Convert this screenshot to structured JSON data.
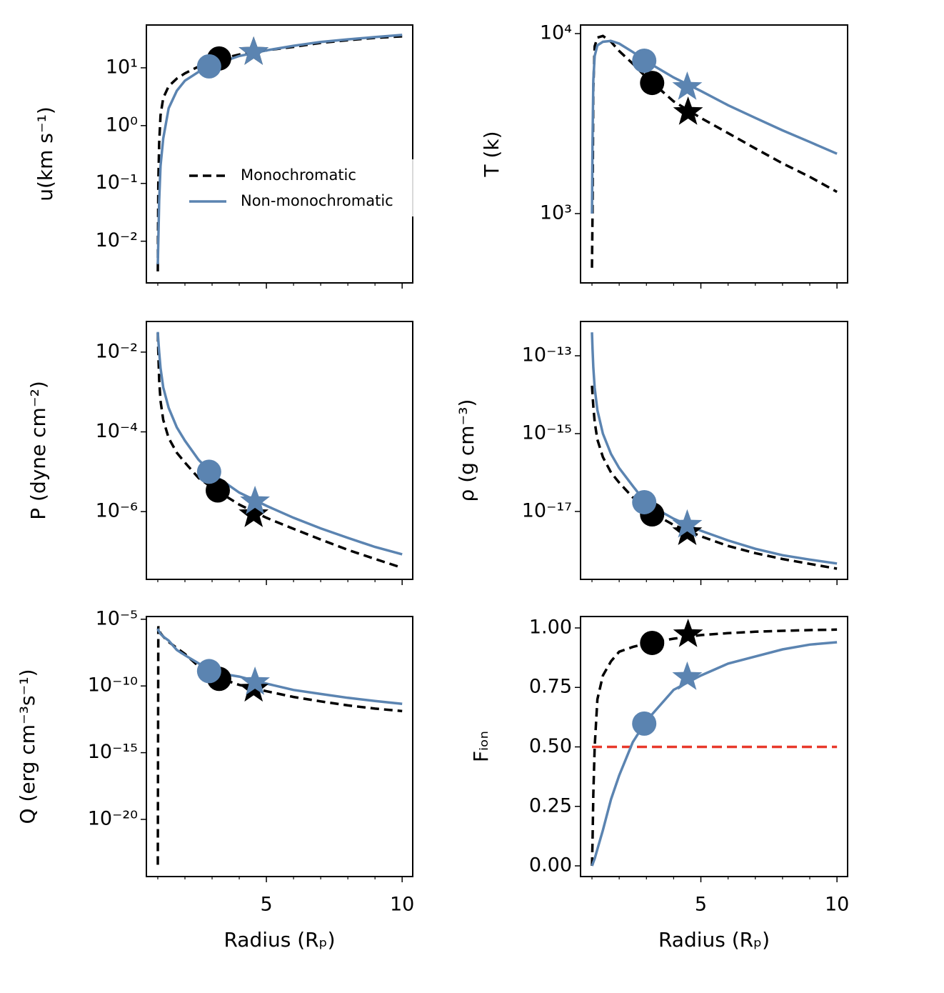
{
  "chart_data": [
    {
      "type": "line",
      "ylabel": "u(km s⁻¹)",
      "log_y": true,
      "legend": "center",
      "xlim": [
        0.58,
        10.39
      ],
      "xticks": [
        5,
        10
      ],
      "xminor": [
        1,
        2,
        3,
        4,
        6,
        7,
        8,
        9
      ],
      "xtick_labels": false,
      "ylim": [
        0.0019,
        55
      ],
      "yticks": [
        {
          "value": 0.01,
          "label": "10⁻²"
        },
        {
          "value": 0.1,
          "label": "10⁻¹"
        },
        {
          "value": 1,
          "label": "10⁰"
        },
        {
          "value": 10,
          "label": "10¹"
        }
      ],
      "x": [
        1,
        1.02,
        1.05,
        1.1,
        1.2,
        1.4,
        1.7,
        2,
        2.5,
        3,
        4,
        5,
        6,
        7,
        8,
        9,
        10
      ],
      "series": [
        {
          "name": "Monochromatic",
          "color": "#000000",
          "linestyle": "dashed",
          "values": [
            0.003,
            0.1,
            0.5,
            1.5,
            3,
            4.8,
            6.5,
            8,
            10.5,
            13,
            17,
            20,
            23,
            27,
            30,
            33,
            35
          ],
          "points": [
            {
              "marker": "circle",
              "x": 3.26,
              "y": 14.5
            },
            {
              "marker": "star",
              "x": 4.53,
              "y": 18.7
            }
          ]
        },
        {
          "name": "Non-monochromatic",
          "color": "#5b84b1",
          "linestyle": "solid",
          "values": [
            0.004,
            0.01,
            0.05,
            0.2,
            0.6,
            2,
            4,
            6,
            8.5,
            11,
            16,
            20,
            24,
            28,
            31,
            34,
            37
          ],
          "points": [
            {
              "marker": "circle",
              "x": 2.89,
              "y": 10.6
            },
            {
              "marker": "star",
              "x": 4.53,
              "y": 18.7
            }
          ]
        }
      ]
    },
    {
      "type": "line",
      "ylabel": "T (k)",
      "log_y": true,
      "xlim": [
        0.58,
        10.39
      ],
      "xticks": [
        5,
        10
      ],
      "xminor": [
        1,
        2,
        3,
        4,
        6,
        7,
        8,
        9
      ],
      "xtick_labels": false,
      "ylim": [
        412,
        11160
      ],
      "yticks": [
        {
          "value": 1000,
          "label": "10³"
        },
        {
          "value": 10000,
          "label": "10⁴"
        }
      ],
      "x": [
        1,
        1.02,
        1.05,
        1.1,
        1.2,
        1.4,
        1.7,
        2,
        2.5,
        3,
        4,
        5,
        6,
        7,
        8,
        9,
        10
      ],
      "series": [
        {
          "name": "Monochromatic",
          "color": "#000000",
          "linestyle": "dashed",
          "values": [
            500,
            1000,
            5000,
            8500,
            9500,
            9700,
            9000,
            8000,
            6800,
            5700,
            4200,
            3400,
            2800,
            2300,
            1900,
            1600,
            1320
          ],
          "points": [
            {
              "marker": "circle",
              "x": 3.21,
              "y": 5320
            },
            {
              "marker": "star",
              "x": 4.53,
              "y": 3660
            }
          ]
        },
        {
          "name": "Non-monochromatic",
          "color": "#5b84b1",
          "linestyle": "solid",
          "values": [
            1000,
            2500,
            5500,
            7500,
            8600,
            9000,
            9100,
            8800,
            7900,
            7000,
            5700,
            4800,
            4000,
            3400,
            2900,
            2500,
            2150
          ],
          "points": [
            {
              "marker": "circle",
              "x": 2.92,
              "y": 7070
            },
            {
              "marker": "star",
              "x": 4.5,
              "y": 5040
            }
          ]
        }
      ]
    },
    {
      "type": "line",
      "ylabel": "P (dyne cm⁻²)",
      "log_y": true,
      "xlim": [
        0.58,
        10.39
      ],
      "xticks": [
        5,
        10
      ],
      "xminor": [
        1,
        2,
        3,
        4,
        6,
        7,
        8,
        9
      ],
      "xtick_labels": false,
      "ylim": [
        2e-08,
        0.0586
      ],
      "yticks": [
        {
          "value": 1e-06,
          "label": "10⁻⁶"
        },
        {
          "value": 0.0001,
          "label": "10⁻⁴"
        },
        {
          "value": 0.01,
          "label": "10⁻²"
        }
      ],
      "x": [
        1,
        1.02,
        1.05,
        1.1,
        1.2,
        1.4,
        1.7,
        2,
        2.5,
        3,
        4,
        5,
        6,
        7,
        8,
        9,
        10
      ],
      "series": [
        {
          "name": "Monochromatic",
          "color": "#000000",
          "linestyle": "dashed",
          "values": [
            0.03,
            0.01,
            0.002,
            0.0006,
            0.0002,
            7e-05,
            3e-05,
            1.7e-05,
            7e-06,
            4e-06,
            1.5e-06,
            7e-07,
            3.7e-07,
            2e-07,
            1.1e-07,
            6.5e-08,
            3.9e-08
          ],
          "points": [
            {
              "marker": "circle",
              "x": 3.21,
              "y": 3.4e-06
            },
            {
              "marker": "star",
              "x": 4.53,
              "y": 8.5e-07
            }
          ]
        },
        {
          "name": "Non-monochromatic",
          "color": "#5b84b1",
          "linestyle": "solid",
          "values": [
            0.032,
            0.02,
            0.01,
            0.004,
            0.0013,
            0.0004,
            0.00013,
            6e-05,
            2e-05,
            9e-06,
            3e-06,
            1.4e-06,
            7e-07,
            3.8e-07,
            2.2e-07,
            1.3e-07,
            8.5e-08
          ],
          "points": [
            {
              "marker": "circle",
              "x": 2.89,
              "y": 1e-05
            },
            {
              "marker": "star",
              "x": 4.58,
              "y": 1.8e-06
            }
          ]
        }
      ]
    },
    {
      "type": "line",
      "ylabel": "ρ (g cm⁻³)",
      "log_y": true,
      "xlim": [
        0.58,
        10.39
      ],
      "xticks": [
        5,
        10
      ],
      "xminor": [
        1,
        2,
        3,
        4,
        6,
        7,
        8,
        9
      ],
      "xtick_labels": false,
      "ylim": [
        1.8e-19,
        7.6e-13
      ],
      "yticks": [
        {
          "value": 1e-17,
          "label": "10⁻¹⁷"
        },
        {
          "value": 1e-15,
          "label": "10⁻¹⁵"
        },
        {
          "value": 1e-13,
          "label": "10⁻¹³"
        }
      ],
      "x": [
        1,
        1.02,
        1.05,
        1.1,
        1.2,
        1.4,
        1.7,
        2,
        2.5,
        3,
        4,
        5,
        6,
        7,
        8,
        9,
        10
      ],
      "series": [
        {
          "name": "Monochromatic",
          "color": "#000000",
          "linestyle": "dashed",
          "values": [
            1.7e-14,
            1e-14,
            5e-15,
            2e-15,
            7e-16,
            2.5e-16,
            1e-16,
            5.5e-17,
            2.3e-17,
            1.1e-17,
            4.5e-18,
            2.3e-18,
            1.3e-18,
            8.5e-19,
            6e-19,
            4.5e-19,
            3.4e-19
          ],
          "points": [
            {
              "marker": "circle",
              "x": 3.21,
              "y": 8.4e-18
            },
            {
              "marker": "star",
              "x": 4.5,
              "y": 2.9e-18
            }
          ]
        },
        {
          "name": "Non-monochromatic",
          "color": "#5b84b1",
          "linestyle": "solid",
          "values": [
            4e-13,
            1.5e-13,
            5e-14,
            1.5e-14,
            4e-15,
            1e-15,
            3e-16,
            1.3e-16,
            4.5e-17,
            1.6e-17,
            6.5e-18,
            3.2e-18,
            1.8e-18,
            1.1e-18,
            7.5e-19,
            5.8e-19,
            4.6e-19
          ],
          "points": [
            {
              "marker": "circle",
              "x": 2.92,
              "y": 1.73e-17
            },
            {
              "marker": "star",
              "x": 4.5,
              "y": 4.5e-18
            }
          ]
        }
      ]
    },
    {
      "type": "line",
      "ylabel": "Q (erg cm⁻³s⁻¹)",
      "xlabel": "Radius (Rₚ)",
      "log_y": true,
      "xlim": [
        0.58,
        10.39
      ],
      "xticks": [
        5,
        10
      ],
      "xminor": [
        1,
        2,
        3,
        4,
        6,
        7,
        8,
        9
      ],
      "xtick_labels": true,
      "ylim": [
        5.2e-25,
        1.6e-05
      ],
      "yticks": [
        {
          "value": 1e-20,
          "label": "10⁻²⁰"
        },
        {
          "value": 1e-15,
          "label": "10⁻¹⁵"
        },
        {
          "value": 1e-10,
          "label": "10⁻¹⁰"
        },
        {
          "value": 1e-05,
          "label": "10⁻⁵"
        }
      ],
      "x": [
        1,
        1.02,
        1.05,
        1.1,
        1.2,
        1.4,
        1.7,
        2,
        2.5,
        3,
        4,
        5,
        6,
        7,
        8,
        9,
        10
      ],
      "series": [
        {
          "name": "Monochromatic",
          "color": "#000000",
          "linestyle": "dashed",
          "values": [
            4e-24,
            3e-06,
            1.5e-06,
            9e-07,
            5e-07,
            2e-07,
            7e-08,
            2.5e-08,
            3e-09,
            6e-10,
            1.2e-10,
            4e-11,
            1.5e-11,
            7e-12,
            3.5e-12,
            2e-12,
            1.3e-12
          ],
          "points": [
            {
              "marker": "circle",
              "x": 3.26,
              "y": 3.4e-10
            },
            {
              "marker": "star",
              "x": 4.53,
              "y": 6e-11
            }
          ]
        },
        {
          "name": "Non-monochromatic",
          "color": "#5b84b1",
          "linestyle": "solid",
          "values": [
            2e-06,
            1.5e-06,
            1.2e-06,
            8e-07,
            5e-07,
            2.5e-07,
            5e-08,
            2e-08,
            5e-09,
            1.1e-09,
            5e-10,
            1.5e-10,
            5e-11,
            2.5e-11,
            1.3e-11,
            7.5e-12,
            4.6e-12
          ],
          "points": [
            {
              "marker": "circle",
              "x": 2.89,
              "y": 1.3e-09
            },
            {
              "marker": "star",
              "x": 4.58,
              "y": 1.9e-10
            }
          ]
        }
      ]
    },
    {
      "type": "line",
      "ylabel": "Fᵢₒₙ",
      "xlabel": "Radius (Rₚ)",
      "log_y": false,
      "xlim": [
        0.58,
        10.39
      ],
      "xticks": [
        5,
        10
      ],
      "xminor": [
        1,
        2,
        3,
        4,
        6,
        7,
        8,
        9
      ],
      "xtick_labels": true,
      "ylim": [
        -0.045,
        1.048
      ],
      "yticks": [
        {
          "value": 0,
          "label": "0.00"
        },
        {
          "value": 0.25,
          "label": "0.25"
        },
        {
          "value": 0.5,
          "label": "0.50"
        },
        {
          "value": 0.75,
          "label": "0.75"
        },
        {
          "value": 1,
          "label": "1.00"
        }
      ],
      "reference_line": {
        "value": 0.5,
        "color": "#e8392b"
      },
      "x": [
        1,
        1.02,
        1.05,
        1.1,
        1.2,
        1.4,
        1.7,
        2,
        2.5,
        3,
        4,
        5,
        6,
        7,
        8,
        9,
        10
      ],
      "series": [
        {
          "name": "Monochromatic",
          "color": "#000000",
          "linestyle": "dashed",
          "values": [
            0,
            0.1,
            0.3,
            0.5,
            0.7,
            0.8,
            0.86,
            0.9,
            0.92,
            0.935,
            0.955,
            0.97,
            0.978,
            0.984,
            0.988,
            0.991,
            0.993
          ],
          "points": [
            {
              "marker": "circle",
              "x": 3.21,
              "y": 0.937
            },
            {
              "marker": "star",
              "x": 4.53,
              "y": 0.973
            }
          ]
        },
        {
          "name": "Non-monochromatic",
          "color": "#5b84b1",
          "linestyle": "solid",
          "values": [
            0,
            0.005,
            0.015,
            0.03,
            0.07,
            0.15,
            0.28,
            0.38,
            0.52,
            0.61,
            0.74,
            0.8,
            0.85,
            0.88,
            0.91,
            0.93,
            0.94
          ],
          "points": [
            {
              "marker": "circle",
              "x": 2.92,
              "y": 0.598
            },
            {
              "marker": "star",
              "x": 4.5,
              "y": 0.793
            }
          ]
        }
      ]
    }
  ]
}
